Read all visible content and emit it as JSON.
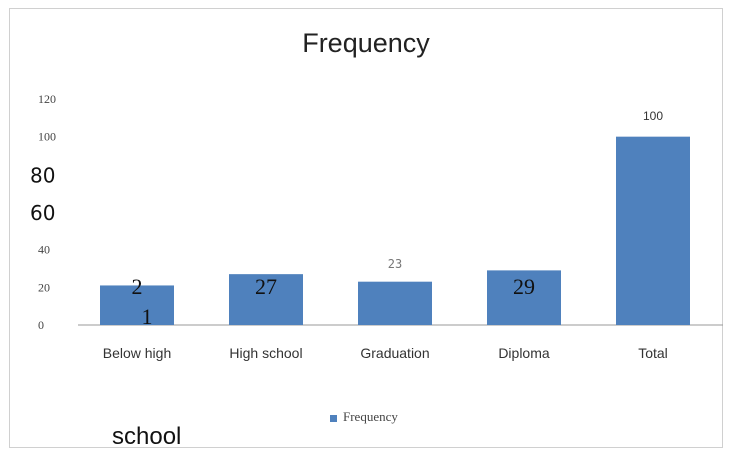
{
  "chart_data": {
    "type": "bar",
    "title": "Frequency",
    "categories": [
      "Below high",
      "High school",
      "Graduation",
      "Diploma",
      "Total"
    ],
    "category_continuation": "school",
    "series": [
      {
        "name": "Frequency",
        "values": [
          21,
          27,
          23,
          29,
          100
        ],
        "color": "#4f81bd"
      }
    ],
    "data_labels": [
      "2",
      "27",
      "23",
      "29",
      "100"
    ],
    "data_label_extra": "1",
    "y_ticks": [
      "0",
      "20",
      "40",
      "60",
      "80",
      "100",
      "120"
    ],
    "ylim": [
      0,
      120
    ],
    "grid": false,
    "legend": {
      "position": "bottom",
      "label": "Frequency"
    }
  }
}
